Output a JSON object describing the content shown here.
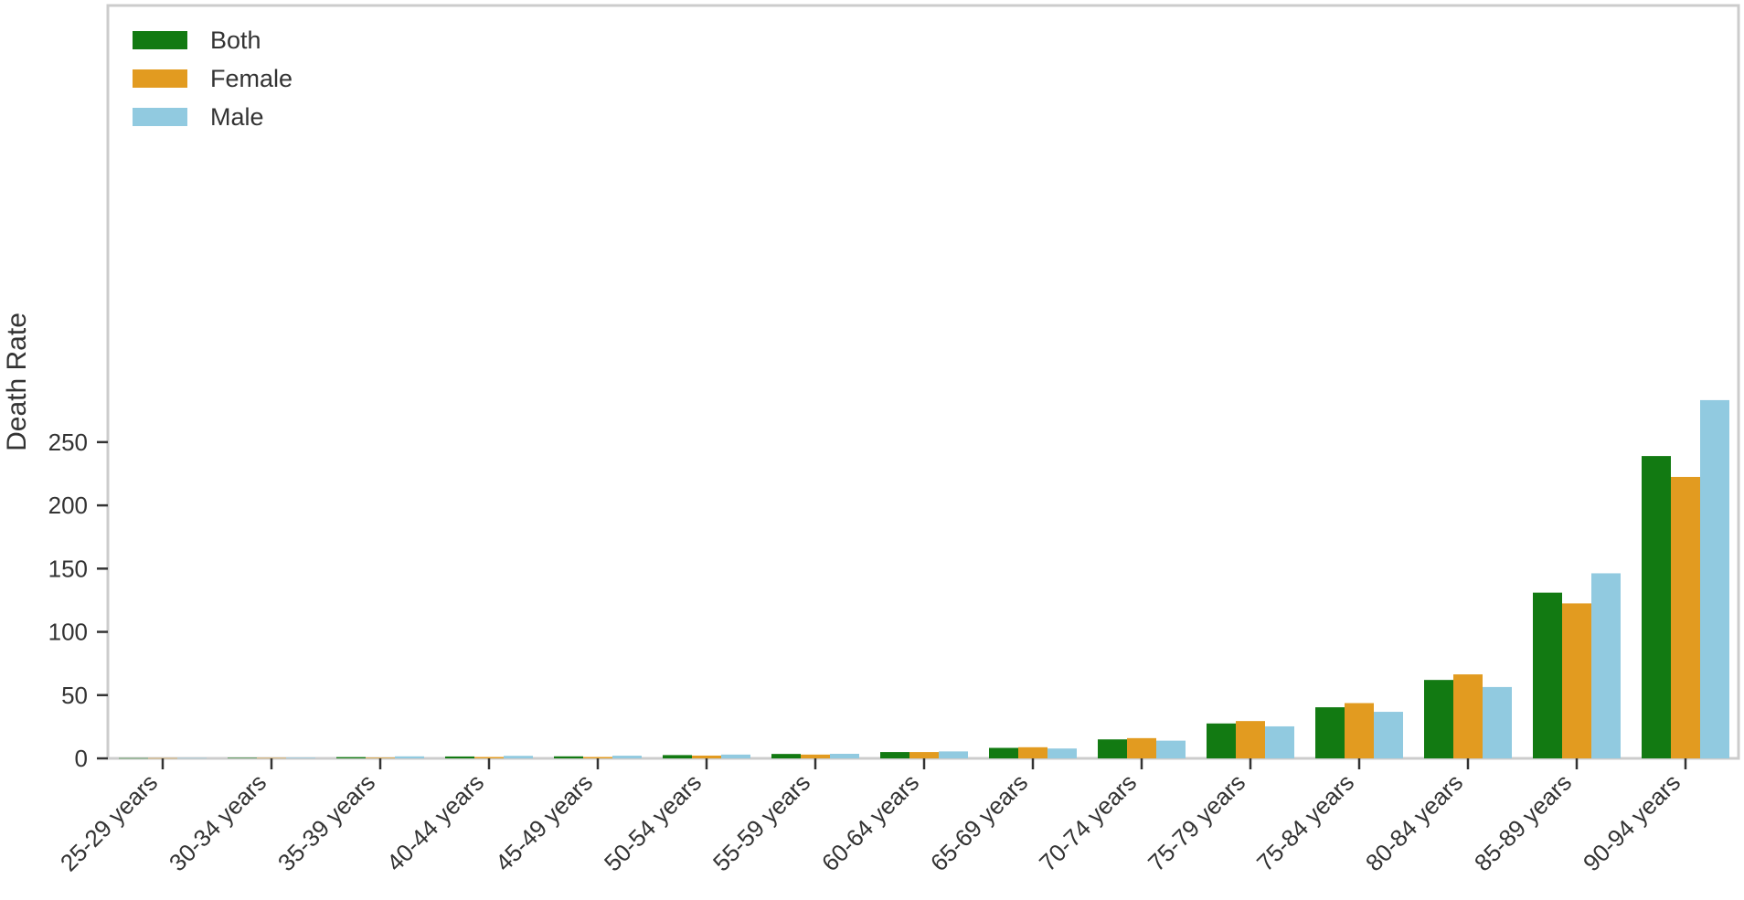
{
  "chart_data": {
    "type": "bar",
    "title": "",
    "xlabel": "",
    "ylabel": "Death Rate",
    "ylim": [
      0,
      285
    ],
    "yticks": [
      0,
      50,
      100,
      150,
      200,
      250
    ],
    "grid": false,
    "legend": {
      "position": "top-left"
    },
    "categories": [
      "25-29 years",
      "30-34 years",
      "35-39 years",
      "40-44 years",
      "45-49 years",
      "50-54 years",
      "55-59 years",
      "60-64 years",
      "65-69 years",
      "70-74 years",
      "75-79 years",
      "75-84 years",
      "80-84 years",
      "85-89 years",
      "90-94 years"
    ],
    "series": [
      {
        "name": "Both",
        "color": "#127a12",
        "values": [
          0.2,
          0.4,
          1.0,
          1.5,
          1.6,
          2.6,
          3.5,
          5.0,
          8.3,
          15.0,
          27.6,
          40.4,
          62.0,
          131.0,
          239.0
        ]
      },
      {
        "name": "Female",
        "color": "#e29b20",
        "values": [
          0.2,
          0.3,
          0.5,
          1.1,
          1.1,
          2.2,
          3.0,
          5.0,
          8.8,
          16.0,
          29.5,
          43.7,
          66.4,
          122.5,
          222.5
        ]
      },
      {
        "name": "Male",
        "color": "#91cae0",
        "values": [
          0.3,
          0.5,
          1.6,
          2.0,
          2.1,
          3.0,
          3.6,
          5.5,
          7.8,
          14.0,
          25.3,
          36.8,
          56.4,
          146.3,
          283.2
        ]
      }
    ]
  }
}
